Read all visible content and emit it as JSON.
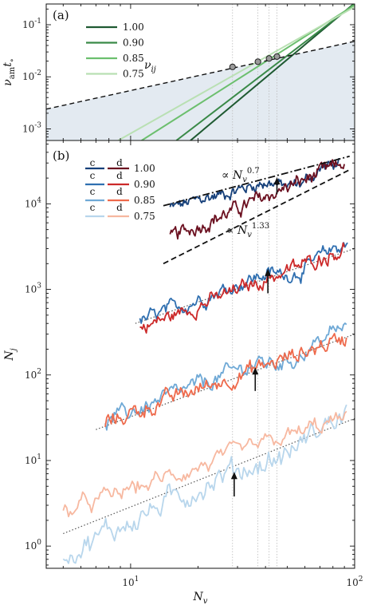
{
  "chart_data": [
    {
      "panel": "(a)",
      "type": "line",
      "ylabel_base": "ν",
      "ylabel_sub": "am",
      "ylabel_t": "t",
      "ylabel_t_sub": "∘",
      "x_scale": "log",
      "y_scale": "log",
      "xlim": [
        4.2,
        100
      ],
      "ylim": [
        0.0006,
        0.25
      ],
      "y_ticks": [
        {
          "value": 0.001,
          "base": "10",
          "exp": "-3"
        },
        {
          "value": 0.01,
          "base": "10",
          "exp": "-2"
        },
        {
          "value": 0.1,
          "base": "10",
          "exp": "-1"
        }
      ],
      "annotation": {
        "text_base": "ν",
        "text_sub": "ij",
        "x": 11.5,
        "y": 0.0125
      },
      "legend": [
        {
          "label": "1.00",
          "color": "#1f5a32"
        },
        {
          "label": "0.90",
          "color": "#3a8a48"
        },
        {
          "label": "0.85",
          "color": "#6cbf6e"
        },
        {
          "label": "0.75",
          "color": "#b9e0b3"
        }
      ],
      "series": [
        {
          "name": "1.00",
          "color": "#1f5a32",
          "x": [
            18.5,
            100
          ],
          "y": [
            0.0006,
            0.26
          ]
        },
        {
          "name": "0.90",
          "color": "#3a8a48",
          "x": [
            16.0,
            100
          ],
          "y": [
            0.0006,
            0.25
          ]
        },
        {
          "name": "0.85",
          "color": "#6cbf6e",
          "x": [
            11.2,
            100
          ],
          "y": [
            0.0006,
            0.24
          ]
        },
        {
          "name": "0.75",
          "color": "#b9e0b3",
          "x": [
            8.8,
            100
          ],
          "y": [
            0.0006,
            0.22
          ]
        }
      ],
      "reference_line": {
        "x": [
          4.2,
          100
        ],
        "y": [
          0.0024,
          0.048
        ]
      },
      "shaded_region": "below reference line",
      "intersections": [
        {
          "x": 28.5,
          "y": 0.0155
        },
        {
          "x": 37.0,
          "y": 0.0195
        },
        {
          "x": 41.5,
          "y": 0.0225
        },
        {
          "x": 45.0,
          "y": 0.0245
        }
      ]
    },
    {
      "panel": "(b)",
      "type": "line",
      "xlabel_base": "N",
      "xlabel_sub": "v",
      "ylabel_base": "N",
      "ylabel_sub": "j",
      "x_scale": "log",
      "y_scale": "log",
      "xlim": [
        4.2,
        100
      ],
      "ylim": [
        0.55,
        55000
      ],
      "x_ticks": [
        {
          "value": 10,
          "base": "10",
          "exp": "1"
        },
        {
          "value": 100,
          "base": "10",
          "exp": "2"
        }
      ],
      "y_ticks": [
        {
          "value": 1,
          "base": "10",
          "exp": "0"
        },
        {
          "value": 10,
          "base": "10",
          "exp": "1"
        },
        {
          "value": 100,
          "base": "10",
          "exp": "2"
        },
        {
          "value": 1000,
          "base": "10",
          "exp": "3"
        },
        {
          "value": 10000,
          "base": "10",
          "exp": "4"
        }
      ],
      "legend_header": [
        "c",
        "d"
      ],
      "legend": [
        {
          "label": "1.00",
          "c_color": "#16407a",
          "d_color": "#6b1020"
        },
        {
          "label": "0.90",
          "c_color": "#2f6fb0",
          "d_color": "#cc2a2a"
        },
        {
          "label": "0.85",
          "c_color": "#6fa9d6",
          "d_color": "#ee6a4c"
        },
        {
          "label": "0.75",
          "c_color": "#b8d6ec",
          "d_color": "#f7b8a0"
        }
      ],
      "power_laws": [
        {
          "label_prefix": "∝ ",
          "label_base": "N",
          "label_sub": "v",
          "exp": "0.7",
          "style": "dashdot",
          "x": [
            14,
            95
          ],
          "y": [
            9500,
            36000
          ]
        },
        {
          "label_prefix": "∝ ",
          "label_base": "N",
          "label_sub": "v",
          "exp": "1.33",
          "style": "dashed",
          "x": [
            14,
            95
          ],
          "y": [
            2000,
            25000
          ]
        }
      ],
      "series": [
        {
          "name": "c 1.00",
          "color": "#16407a",
          "x_start": 15,
          "x_end": 85,
          "y_start": 9000,
          "y_end": 30000,
          "slope": 0.62,
          "kink": 41,
          "noise": 0.05
        },
        {
          "name": "d 1.00",
          "color": "#6b1020",
          "x_start": 15,
          "x_end": 90,
          "y_start": 4000,
          "y_end": 30000,
          "slope": 1.1,
          "kink": 0,
          "noise": 0.06
        },
        {
          "name": "c 0.90",
          "color": "#2f6fb0",
          "x_start": 11,
          "x_end": 93,
          "y_start": 420,
          "y_end": 3500,
          "slope": 1.0,
          "kink": 41,
          "noise": 0.06
        },
        {
          "name": "d 0.90",
          "color": "#cc2a2a",
          "x_start": 11,
          "x_end": 90,
          "y_start": 350,
          "y_end": 3000,
          "slope": 1.05,
          "kink": 0,
          "noise": 0.06
        },
        {
          "name": "c 0.85",
          "color": "#6fa9d6",
          "x_start": 7.7,
          "x_end": 92,
          "y_start": 28,
          "y_end": 360,
          "slope": 1.03,
          "kink": 36,
          "noise": 0.07
        },
        {
          "name": "d 0.85",
          "color": "#ee6a4c",
          "x_start": 7.7,
          "x_end": 92,
          "y_start": 28,
          "y_end": 280,
          "slope": 0.95,
          "kink": 0,
          "noise": 0.07
        },
        {
          "name": "c 0.75",
          "color": "#b8d6ec",
          "x_start": 5,
          "x_end": 92,
          "y_start": 0.8,
          "y_end": 35,
          "slope": 1.22,
          "kink": 29,
          "noise": 0.1
        },
        {
          "name": "d 0.75",
          "color": "#f7b8a0",
          "x_start": 5,
          "x_end": 92,
          "y_start": 2.5,
          "y_end": 32,
          "slope": 0.88,
          "kink": 0,
          "noise": 0.07
        }
      ],
      "dotted_fits": [
        {
          "x": [
            10.5,
            100
          ],
          "y": [
            400,
            3000
          ]
        },
        {
          "x": [
            7.0,
            100
          ],
          "y": [
            23,
            300
          ]
        },
        {
          "x": [
            5.0,
            100
          ],
          "y": [
            1.4,
            31
          ]
        }
      ],
      "arrows": [
        {
          "x": 45,
          "y_tail": 13000,
          "y_head": 20000
        },
        {
          "x": 41,
          "y_tail": 900,
          "y_head": 1700
        },
        {
          "x": 36,
          "y_tail": 65,
          "y_head": 120
        },
        {
          "x": 29,
          "y_tail": 3.8,
          "y_head": 7.2
        }
      ],
      "vertical_guides": [
        28.5,
        37.0,
        41.5,
        45.0
      ]
    }
  ]
}
